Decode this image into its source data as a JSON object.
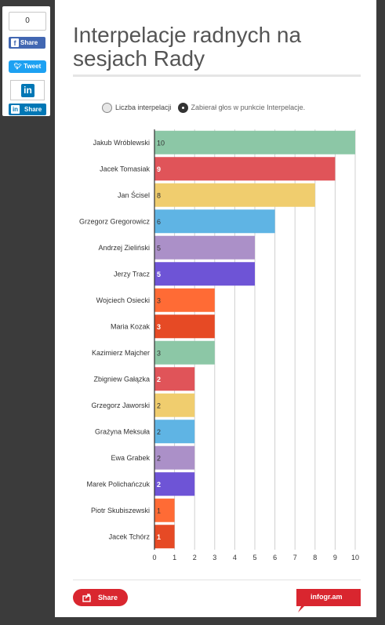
{
  "social": {
    "count": "0",
    "fb_label": "Share",
    "tweet_label": "Tweet",
    "li_label": "Share"
  },
  "title": "Interpelacje radnych na sesjach Rady",
  "legend": {
    "option1": "Liczba interpelacji",
    "option2": "Zabierał głos w punkcie Interpelacje."
  },
  "footer": {
    "share_label": "Share",
    "brand": "infogr.am"
  },
  "chart_data": {
    "type": "bar",
    "orientation": "horizontal",
    "categories": [
      "Jakub Wróblewski",
      "Jacek Tomasiak",
      "Jan Ścisel",
      "Grzegorz Gregorowicz",
      "Andrzej Zieliński",
      "Jerzy Tracz",
      "Wojciech Osiecki",
      "Maria Kozak",
      "Kazimierz Majcher",
      "Zbigniew Gałązka",
      "Grzegorz Jaworski",
      "Grażyna Meksuła",
      "Ewa Grabek",
      "Marek Polichańczuk",
      "Piotr Skubiszewski",
      "Jacek Tchórz"
    ],
    "values": [
      10,
      9,
      8,
      6,
      5,
      5,
      3,
      3,
      3,
      2,
      2,
      2,
      2,
      2,
      1,
      1
    ],
    "colors": [
      "#8cc7a6",
      "#e05459",
      "#f0cd6e",
      "#5fb4e4",
      "#ab90c8",
      "#6e54d6",
      "#ff6b35",
      "#e64a25",
      "#8cc7a6",
      "#e05459",
      "#f0cd6e",
      "#5fb4e4",
      "#ab90c8",
      "#6e54d6",
      "#ff6b35",
      "#e64a25"
    ],
    "label_colors": [
      "#333333",
      "#ffffff",
      "#333333",
      "#333333",
      "#333333",
      "#ffffff",
      "#333333",
      "#ffffff",
      "#333333",
      "#ffffff",
      "#333333",
      "#333333",
      "#333333",
      "#ffffff",
      "#333333",
      "#ffffff"
    ],
    "xlim": [
      0,
      10
    ],
    "xticks": [
      0,
      1,
      2,
      3,
      4,
      5,
      6,
      7,
      8,
      9,
      10
    ],
    "grid": true
  }
}
